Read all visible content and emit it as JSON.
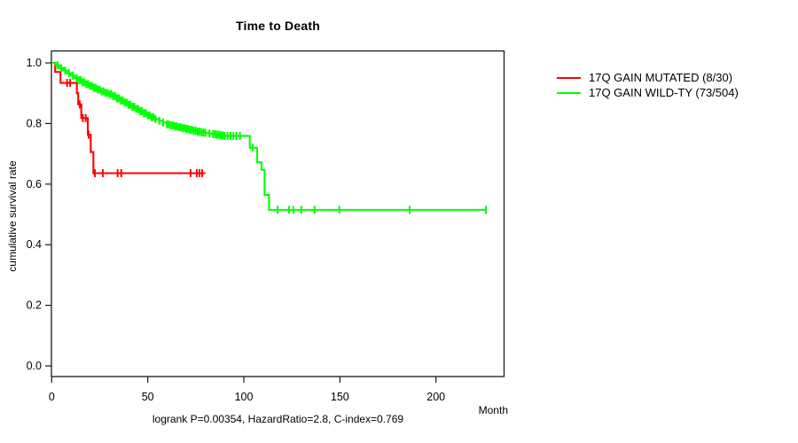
{
  "title": "Time to Death",
  "caption": "logrank P=0.00354, HazardRatio=2.8, C-index=0.769",
  "axes": {
    "x": {
      "label": "Month",
      "ticks": [
        0,
        50,
        100,
        150,
        200
      ]
    },
    "y": {
      "label": "cumulative survival rate",
      "ticks": [
        1.0,
        0.8,
        0.6,
        0.4,
        0.2,
        0.0
      ]
    }
  },
  "legend": [
    {
      "label": "17Q GAIN MUTATED (8/30)",
      "color": "#FF0000"
    },
    {
      "label": "17Q GAIN WILD-TY (73/504)",
      "color": "#00FF00"
    }
  ],
  "chart_data": {
    "type": "line",
    "subtype": "kaplan-meier-step",
    "title": "Time to Death",
    "xlabel": "Month",
    "ylabel": "cumulative survival rate",
    "xlim": [
      0,
      235
    ],
    "ylim": [
      0.0,
      1.0
    ],
    "grid": false,
    "legend_position": "right-outside",
    "stats": {
      "logrank_p": "0.00354",
      "hazard_ratio": "2.8",
      "c_index": "0.769"
    },
    "series": [
      {
        "name": "17Q GAIN MUTATED (8/30)",
        "color": "#FF0000",
        "steps": [
          [
            0,
            1.0
          ],
          [
            1.8,
            0.97
          ],
          [
            4.6,
            0.934
          ],
          [
            13.1,
            0.9
          ],
          [
            13.8,
            0.863
          ],
          [
            15.4,
            0.818
          ],
          [
            18.8,
            0.763
          ],
          [
            20.3,
            0.706
          ],
          [
            21.7,
            0.636
          ]
        ],
        "end_month": 80,
        "censor_months": [
          8.0,
          9.6,
          14.6,
          16.2,
          17.7,
          19.2,
          22.5,
          26.6,
          34.3,
          36.2,
          72.3,
          75.5,
          76.9,
          78.3
        ]
      },
      {
        "name": "17Q GAIN WILD-TY (73/504)",
        "color": "#00FF00",
        "steps": [
          [
            0,
            1.0
          ],
          [
            2,
            0.992
          ],
          [
            4,
            0.983
          ],
          [
            6,
            0.975
          ],
          [
            8,
            0.966
          ],
          [
            10,
            0.958
          ],
          [
            12,
            0.949
          ],
          [
            14,
            0.943
          ],
          [
            16,
            0.936
          ],
          [
            18,
            0.93
          ],
          [
            20,
            0.924
          ],
          [
            22,
            0.918
          ],
          [
            24,
            0.912
          ],
          [
            26,
            0.906
          ],
          [
            28,
            0.901
          ],
          [
            30,
            0.897
          ],
          [
            32,
            0.89
          ],
          [
            34,
            0.883
          ],
          [
            36,
            0.876
          ],
          [
            38,
            0.869
          ],
          [
            40,
            0.862
          ],
          [
            42,
            0.855
          ],
          [
            44,
            0.848
          ],
          [
            46,
            0.841
          ],
          [
            48,
            0.834
          ],
          [
            50,
            0.827
          ],
          [
            52,
            0.821
          ],
          [
            54,
            0.815
          ],
          [
            56,
            0.809
          ],
          [
            58,
            0.803
          ],
          [
            60,
            0.797
          ],
          [
            62,
            0.794
          ],
          [
            64,
            0.791
          ],
          [
            66,
            0.788
          ],
          [
            68,
            0.785
          ],
          [
            70,
            0.782
          ],
          [
            72,
            0.779
          ],
          [
            74,
            0.776
          ],
          [
            76,
            0.773
          ],
          [
            78,
            0.771
          ],
          [
            80,
            0.769
          ],
          [
            82,
            0.767
          ],
          [
            84,
            0.765
          ],
          [
            86,
            0.763
          ],
          [
            88,
            0.761
          ],
          [
            90,
            0.759
          ],
          [
            103.1,
            0.72
          ],
          [
            106.9,
            0.672
          ],
          [
            109.2,
            0.647
          ],
          [
            110.8,
            0.564
          ],
          [
            113.1,
            0.515
          ]
        ],
        "end_month": 226,
        "censor_months": [
          3,
          5,
          7,
          9,
          11,
          13,
          14,
          15,
          16,
          17,
          18,
          19,
          20,
          21,
          22,
          23,
          24,
          25,
          26,
          27,
          28,
          29,
          30,
          31,
          32,
          33,
          34,
          35,
          36,
          37,
          38,
          39,
          40,
          41,
          42,
          43,
          44,
          45,
          46,
          47,
          48,
          49,
          50,
          51,
          52,
          53,
          54,
          56,
          58,
          60,
          61,
          62,
          63,
          64,
          65,
          66,
          67,
          68,
          69,
          70,
          71,
          72,
          73,
          74,
          75,
          76,
          77,
          78,
          79,
          80,
          82,
          84,
          85,
          86,
          87,
          88,
          89,
          90,
          91.5,
          93,
          94.5,
          96,
          98,
          104.7,
          117.6,
          123.5,
          125.8,
          129.9,
          136.8,
          149.7,
          186.3,
          226
        ]
      }
    ]
  }
}
